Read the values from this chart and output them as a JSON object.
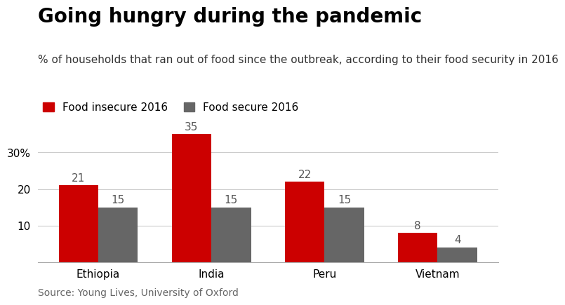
{
  "title": "Going hungry during the pandemic",
  "subtitle": "% of households that ran out of food since the outbreak, according to their food security in 2016",
  "source": "Source: Young Lives, University of Oxford",
  "categories": [
    "Ethiopia",
    "India",
    "Peru",
    "Vietnam"
  ],
  "insecure_values": [
    21,
    35,
    22,
    8
  ],
  "secure_values": [
    15,
    15,
    15,
    4
  ],
  "insecure_color": "#cc0000",
  "secure_color": "#666666",
  "legend_insecure": "Food insecure 2016",
  "legend_secure": "Food secure 2016",
  "ylim": [
    0,
    37
  ],
  "yticks": [
    10,
    20,
    30
  ],
  "ytick_labels": [
    "10",
    "20",
    "30%"
  ],
  "bar_width": 0.35,
  "background_color": "#ffffff",
  "title_fontsize": 20,
  "subtitle_fontsize": 11,
  "axis_label_fontsize": 11,
  "bar_label_fontsize": 11,
  "source_fontsize": 10,
  "legend_fontsize": 11
}
